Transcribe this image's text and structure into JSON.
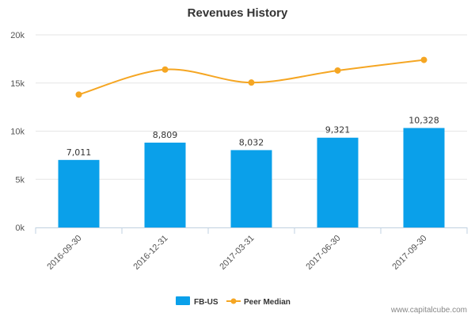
{
  "chart_data": {
    "type": "bar",
    "title": "Revenues History",
    "categories": [
      "2016-09-30",
      "2016-12-31",
      "2017-03-31",
      "2017-06-30",
      "2017-09-30"
    ],
    "ylim": [
      0,
      20000
    ],
    "yticks": [
      0,
      5000,
      10000,
      15000,
      20000
    ],
    "ytick_labels": [
      "0k",
      "5k",
      "10k",
      "15k",
      "20k"
    ],
    "grid": true,
    "legend_position": "bottom",
    "series": [
      {
        "name": "FB-US",
        "type": "bar",
        "color": "#0aa0ea",
        "values": [
          7011,
          8809,
          8032,
          9321,
          10328
        ],
        "labels": [
          "7,011",
          "8,809",
          "8,032",
          "9,321",
          "10,328"
        ]
      },
      {
        "name": "Peer Median",
        "type": "line",
        "color": "#f5a623",
        "values": [
          13800,
          16400,
          15050,
          16300,
          17400
        ]
      }
    ]
  },
  "credit": "www.capitalcube.com"
}
